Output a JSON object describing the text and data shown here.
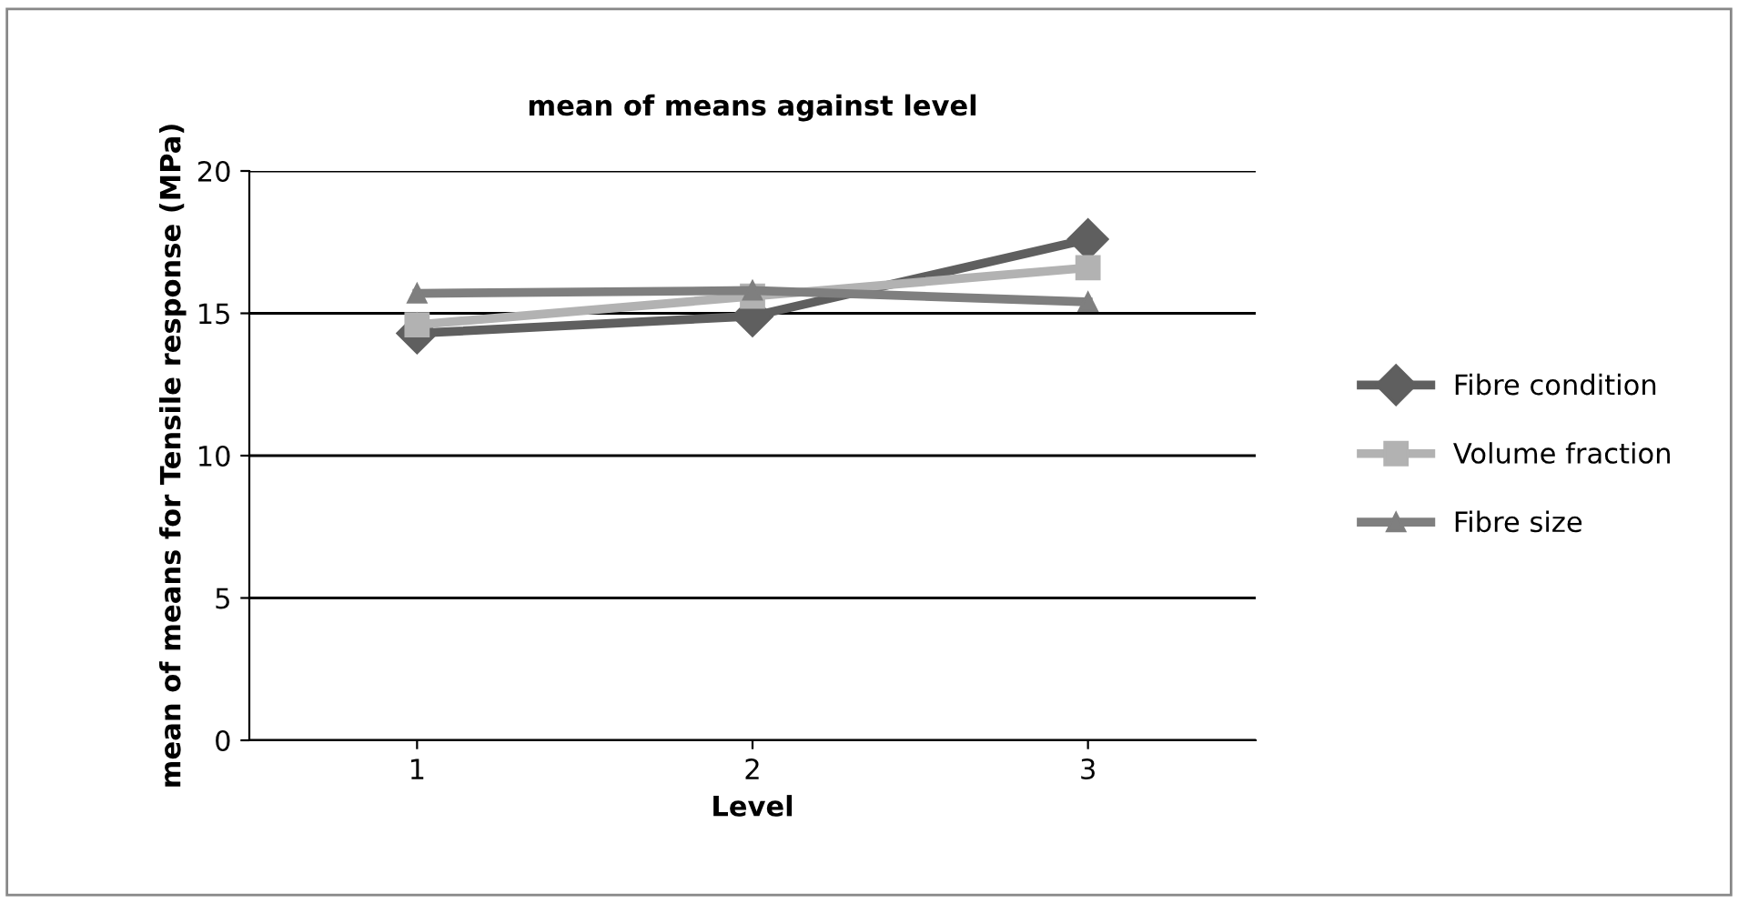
{
  "chart_data": {
    "type": "line",
    "title": "mean of means against level",
    "xlabel": "Level",
    "ylabel": "mean of means for Tensile response (MPa)",
    "categories": [
      "1",
      "2",
      "3"
    ],
    "series": [
      {
        "name": "Fibre condition",
        "color": "#5f5f5f",
        "marker": "diamond",
        "values": [
          14.3,
          14.9,
          17.6
        ]
      },
      {
        "name": "Volume fraction",
        "color": "#b2b2b2",
        "marker": "square",
        "values": [
          14.6,
          15.6,
          16.6
        ]
      },
      {
        "name": "Fibre size",
        "color": "#7f7f7f",
        "marker": "triangle",
        "values": [
          15.7,
          15.8,
          15.4
        ]
      }
    ],
    "ylim": [
      0,
      20
    ],
    "yticks": [
      0,
      5,
      10,
      15,
      20
    ],
    "grid": "y",
    "legend": "right"
  }
}
